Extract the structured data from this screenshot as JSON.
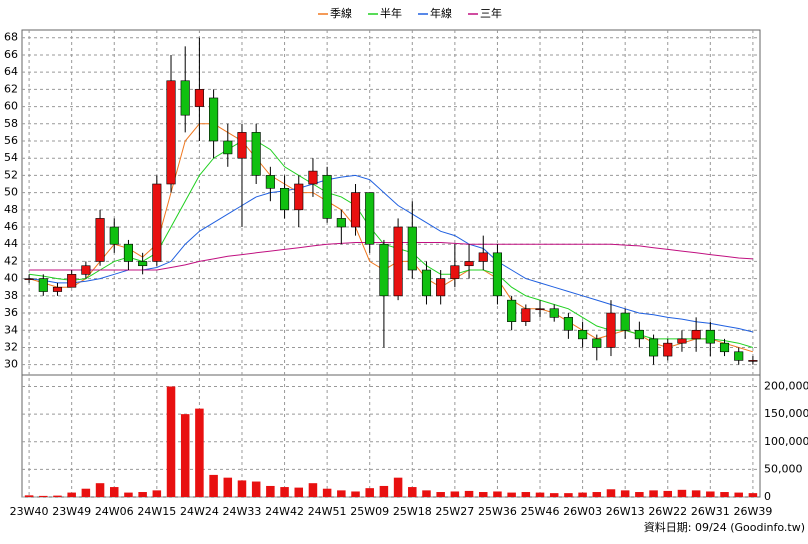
{
  "chart_data": {
    "type": "candlestick",
    "categories": [
      "23W40",
      null,
      null,
      "23W49",
      null,
      null,
      "24W06",
      null,
      null,
      "24W15",
      null,
      null,
      "24W24",
      null,
      null,
      "24W33",
      null,
      null,
      "24W42",
      null,
      null,
      "24W51",
      null,
      null,
      "25W09",
      null,
      null,
      "25W18",
      null,
      null,
      "25W27",
      null,
      null,
      "25W36",
      null,
      null,
      "25W46",
      null,
      null,
      "26W03",
      null,
      null,
      "26W13",
      null,
      null,
      "26W22",
      null,
      null,
      "26W31",
      null,
      null,
      "26W39"
    ],
    "candles": {
      "up_color": "#e81010",
      "down_color": "#10c010",
      "open": [
        40,
        40,
        38.5,
        39,
        40.5,
        42,
        46,
        44,
        42,
        42,
        51,
        63,
        60,
        61,
        56,
        54,
        57,
        52,
        50.5,
        48,
        51,
        52,
        47,
        46,
        50,
        44,
        38,
        46,
        41,
        38,
        40,
        41.5,
        42,
        43,
        37.5,
        35,
        36.5,
        36.5,
        35.5,
        34,
        33,
        32,
        36,
        34,
        33,
        31,
        32.5,
        33,
        34,
        32.5,
        31.5,
        30.5
      ],
      "high": [
        40.5,
        40.5,
        39.5,
        41,
        42,
        48,
        47,
        44.5,
        43,
        52,
        66,
        67,
        68,
        62,
        58,
        58,
        58,
        53,
        52,
        52,
        54,
        53,
        48,
        51,
        50,
        44.5,
        47,
        49,
        42,
        41,
        44,
        44,
        45,
        44,
        38,
        37,
        37.5,
        37,
        36,
        35,
        33.5,
        37.5,
        36.5,
        35,
        33.5,
        33,
        34,
        35.5,
        35,
        33,
        32,
        31
      ],
      "low": [
        39.5,
        38,
        38,
        39,
        40,
        41.5,
        43,
        41,
        40.5,
        41.5,
        50,
        57,
        56,
        54,
        53,
        46,
        51,
        49,
        47,
        46,
        49.5,
        46.5,
        44,
        45,
        43,
        32,
        37.5,
        40,
        37,
        37,
        39,
        40,
        41,
        37,
        34,
        34.5,
        35.5,
        35,
        33,
        32,
        30.5,
        31,
        33,
        32,
        30,
        30.5,
        31.5,
        31.5,
        31,
        31,
        30,
        30
      ],
      "close": [
        40,
        38.5,
        39,
        40.5,
        41.5,
        47,
        44,
        42,
        41.5,
        51,
        63,
        59,
        62,
        56,
        54.5,
        57,
        52,
        50.5,
        48,
        51,
        52.5,
        47,
        46,
        50,
        44,
        38,
        46,
        41,
        38,
        40,
        41.5,
        42,
        43,
        38,
        35,
        36.5,
        36.5,
        35.5,
        34,
        33,
        32,
        36,
        34,
        33,
        31,
        32.5,
        33,
        34,
        32.5,
        31.5,
        30.5,
        30.5
      ]
    },
    "series": [
      {
        "name": "季線",
        "color": "#f07820",
        "values": [
          40,
          39.5,
          39,
          39,
          40,
          42,
          44,
          43.5,
          42.5,
          44,
          50,
          56,
          58,
          58,
          57,
          56,
          54,
          52,
          51,
          50,
          50,
          49,
          48,
          46,
          42,
          41,
          42,
          42,
          40,
          39,
          40,
          41,
          41,
          40,
          37.5,
          36.5,
          36.5,
          36,
          35,
          34,
          33,
          33.5,
          34,
          33.5,
          32.5,
          32,
          32.5,
          33,
          33,
          32.5,
          32,
          31.5
        ]
      },
      {
        "name": "半年",
        "color": "#20d020",
        "values": [
          40.5,
          40.3,
          40,
          39.8,
          40,
          41,
          42,
          42.5,
          42,
          43,
          46,
          49,
          52,
          54,
          55,
          56,
          56,
          55,
          53,
          52,
          51,
          50,
          49.5,
          48.5,
          46,
          44,
          43.5,
          43,
          41.5,
          40.5,
          40.5,
          41,
          41,
          40.5,
          39,
          38,
          37.5,
          37,
          36.5,
          35.5,
          34.5,
          34,
          34,
          33.5,
          33,
          33,
          33,
          33,
          33,
          32.8,
          32.5,
          32
        ]
      },
      {
        "name": "年線",
        "color": "#2060e0",
        "values": [
          40,
          39.8,
          39.5,
          39.5,
          39.7,
          40,
          40.5,
          41,
          41,
          41.3,
          42,
          44,
          45.5,
          46.5,
          47.5,
          48.5,
          49.5,
          50,
          50.2,
          50.5,
          51,
          51.5,
          51.8,
          52,
          51.5,
          50,
          48.5,
          47.5,
          46.5,
          45.5,
          45,
          44,
          43.5,
          42,
          41,
          40,
          39.5,
          39,
          38.5,
          38,
          37.5,
          37,
          36.5,
          36,
          35.8,
          35.5,
          35.3,
          35,
          34.8,
          34.5,
          34.2,
          33.8
        ]
      },
      {
        "name": "三年",
        "color": "#c01080",
        "values": [
          41,
          41,
          41,
          41,
          41,
          41,
          41,
          41,
          41,
          41,
          41.3,
          41.6,
          42,
          42.3,
          42.6,
          42.8,
          43,
          43.2,
          43.4,
          43.6,
          43.8,
          44,
          44.1,
          44.2,
          44.2,
          44.2,
          44.2,
          44.2,
          44.2,
          44.2,
          44.1,
          44,
          44,
          44,
          44,
          44,
          44,
          44,
          44,
          44,
          44,
          44,
          43.9,
          43.8,
          43.6,
          43.4,
          43.2,
          43,
          42.8,
          42.6,
          42.4,
          42.3
        ]
      }
    ],
    "ylim": [
      28.8,
      68.9
    ],
    "yticks": [
      30,
      32,
      34,
      36,
      38,
      40,
      42,
      44,
      46,
      48,
      50,
      52,
      54,
      56,
      58,
      60,
      62,
      64,
      66,
      68
    ],
    "volume": {
      "color": "#e81010",
      "values": [
        3000,
        2000,
        2500,
        8000,
        15000,
        25000,
        18000,
        8000,
        9000,
        12000,
        200000,
        150000,
        160000,
        40000,
        35000,
        30000,
        28000,
        20000,
        18000,
        17000,
        25000,
        15000,
        12000,
        10000,
        16000,
        20000,
        35000,
        18000,
        12000,
        9000,
        10000,
        11000,
        9000,
        10000,
        8000,
        9000,
        8000,
        7000,
        7000,
        8000,
        9000,
        14000,
        12000,
        9000,
        12000,
        11000,
        13000,
        12000,
        10000,
        9000,
        8000,
        7000
      ],
      "ylim": [
        0,
        210000
      ],
      "yticks": [
        0,
        {
          "value": 50000,
          "label": "50,000"
        },
        {
          "value": 100000,
          "label": "100,000"
        },
        {
          "value": 150000,
          "label": "150,000"
        },
        {
          "value": 200000,
          "label": "200,000"
        }
      ]
    },
    "footer": "資料日期: 09/24  (Goodinfo.tw)"
  }
}
